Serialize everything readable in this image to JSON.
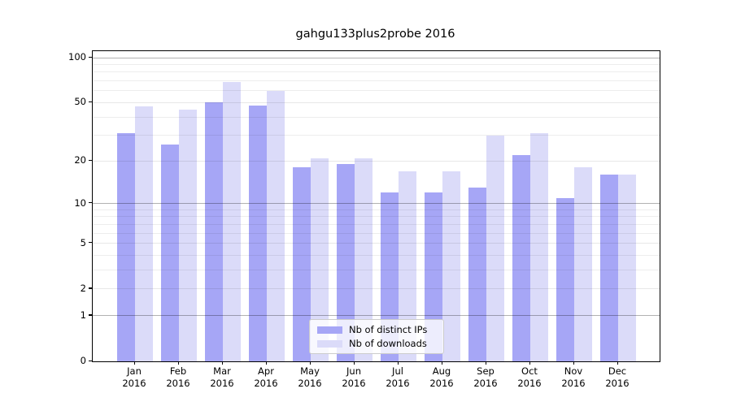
{
  "title": "gahgu133plus2probe 2016",
  "chart_data": {
    "type": "bar",
    "title": "gahgu133plus2probe 2016",
    "categories": [
      "Jan",
      "Feb",
      "Mar",
      "Apr",
      "May",
      "Jun",
      "Jul",
      "Aug",
      "Sep",
      "Oct",
      "Nov",
      "Dec"
    ],
    "year_label": "2016",
    "series": [
      {
        "name": "Nb of distinct IPs",
        "color": "#a6a6f6",
        "values": [
          31,
          26,
          50,
          48,
          18,
          19,
          12,
          12,
          13,
          22,
          11,
          16
        ]
      },
      {
        "name": "Nb of downloads",
        "color": "#dbdbf9",
        "values": [
          47,
          45,
          69,
          60,
          21,
          21,
          17,
          17,
          30,
          31,
          18,
          16
        ]
      }
    ],
    "xlabel": "",
    "ylabel": "",
    "yscale": "log1p",
    "ylim": [
      0,
      110
    ],
    "yticks": [
      100,
      50,
      20,
      10,
      5,
      2,
      1,
      0
    ],
    "grid": {
      "decade_lines": [
        1,
        10,
        100
      ],
      "labeled_lines": [
        2,
        5,
        20,
        50
      ],
      "minor_lines": [
        3,
        4,
        6,
        7,
        8,
        9,
        30,
        40,
        60,
        70,
        80,
        90
      ]
    },
    "legend_position": "lower center"
  },
  "colors": {
    "background": "#ffffff",
    "axis": "#000000",
    "bar_distinct_ips": "#a6a6f6",
    "bar_downloads": "#dbdbf9",
    "grid_decade": "#b3b3b3",
    "grid_minor": "#ececec"
  }
}
